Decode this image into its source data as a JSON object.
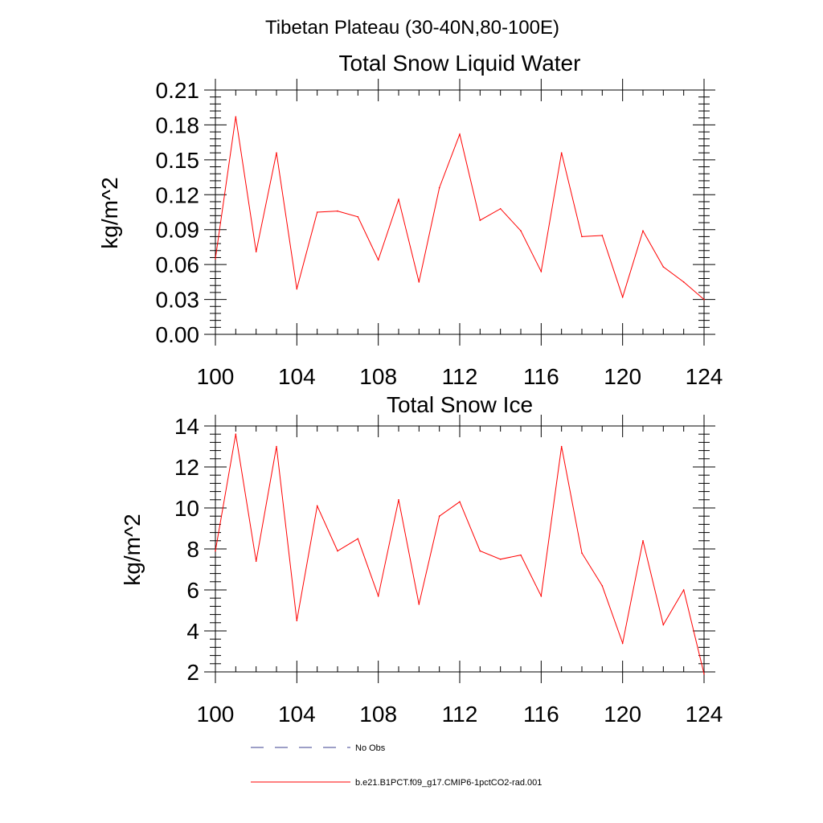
{
  "figure": {
    "suptitle": "Tibetan Plateau (30-40N,80-100E)"
  },
  "legend": {
    "entries": [
      {
        "label": "No Obs",
        "style": "dashed",
        "color": "#3b3f8f"
      },
      {
        "label": "b.e21.B1PCT.f09_g17.CMIP6-1pctCO2-rad.001",
        "style": "solid",
        "color": "#ff0000"
      }
    ]
  },
  "chart_data": [
    {
      "type": "line",
      "title": "Total Snow Liquid Water",
      "xlabel": "",
      "ylabel": "kg/m^2",
      "xlim": [
        100,
        124
      ],
      "ylim": [
        0,
        0.21
      ],
      "xticks": [
        "100",
        "104",
        "108",
        "112",
        "116",
        "120",
        "124"
      ],
      "yticks": [
        "0.00",
        "0.03",
        "0.06",
        "0.09",
        "0.12",
        "0.15",
        "0.18",
        "0.21"
      ],
      "x": [
        100,
        101,
        102,
        103,
        104,
        105,
        106,
        107,
        108,
        109,
        110,
        111,
        112,
        113,
        114,
        115,
        116,
        117,
        118,
        119,
        120,
        121,
        122,
        123,
        124
      ],
      "series": [
        {
          "name": "b.e21.B1PCT.f09_g17.CMIP6-1pctCO2-rad.001",
          "color": "#ff0000",
          "values": [
            0.065,
            0.187,
            0.071,
            0.156,
            0.039,
            0.105,
            0.106,
            0.101,
            0.064,
            0.116,
            0.045,
            0.126,
            0.172,
            0.098,
            0.108,
            0.089,
            0.054,
            0.156,
            0.084,
            0.085,
            0.032,
            0.089,
            0.058,
            0.045,
            0.03
          ]
        }
      ]
    },
    {
      "type": "line",
      "title": "Total Snow Ice",
      "xlabel": "",
      "ylabel": "kg/m^2",
      "xlim": [
        100,
        124
      ],
      "ylim": [
        2,
        14
      ],
      "xticks": [
        "100",
        "104",
        "108",
        "112",
        "116",
        "120",
        "124"
      ],
      "yticks": [
        "2",
        "4",
        "6",
        "8",
        "10",
        "12",
        "14"
      ],
      "x": [
        100,
        101,
        102,
        103,
        104,
        105,
        106,
        107,
        108,
        109,
        110,
        111,
        112,
        113,
        114,
        115,
        116,
        117,
        118,
        119,
        120,
        121,
        122,
        123,
        124
      ],
      "series": [
        {
          "name": "b.e21.B1PCT.f09_g17.CMIP6-1pctCO2-rad.001",
          "color": "#ff0000",
          "values": [
            7.9,
            13.6,
            7.4,
            13.0,
            4.5,
            10.1,
            7.9,
            8.5,
            5.7,
            10.4,
            5.3,
            9.6,
            10.3,
            7.9,
            7.5,
            7.7,
            5.7,
            13.0,
            7.8,
            6.2,
            3.4,
            8.4,
            4.3,
            6.0,
            1.9
          ]
        }
      ]
    }
  ]
}
